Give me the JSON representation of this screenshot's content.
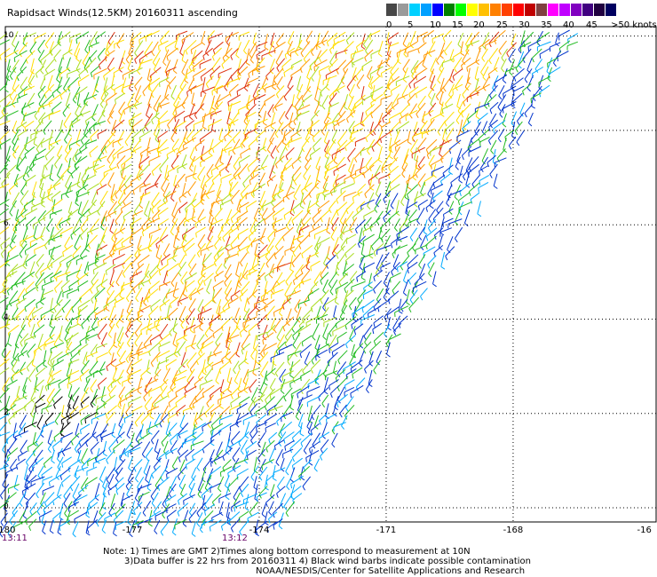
{
  "title": "Rapidsact Winds(12.5KM) 20160311 ascending",
  "legend": {
    "swatches": [
      {
        "color": "#474747"
      },
      {
        "color": "#9a9a9a"
      },
      {
        "color": "#00d0ff"
      },
      {
        "color": "#00a0ff"
      },
      {
        "color": "#0000ff"
      },
      {
        "color": "#008000"
      },
      {
        "color": "#00ff00"
      },
      {
        "color": "#ffff00"
      },
      {
        "color": "#ffc000"
      },
      {
        "color": "#ff8000"
      },
      {
        "color": "#ff4000"
      },
      {
        "color": "#ff0000"
      },
      {
        "color": "#c00000"
      },
      {
        "color": "#804040"
      },
      {
        "color": "#ff00ff"
      },
      {
        "color": "#c000ff"
      },
      {
        "color": "#8000c0"
      },
      {
        "color": "#400080"
      },
      {
        "color": "#200040"
      },
      {
        "color": "#000060"
      }
    ],
    "labels": [
      "0",
      "5",
      "10",
      "15",
      "20",
      "25",
      "30",
      "35",
      "40",
      "45",
      ">50 knots"
    ]
  },
  "axes": {
    "lon_ticks": [
      "-180",
      "-177",
      "-174",
      "-171",
      "-168",
      "-16"
    ],
    "lat_ticks": [
      "10",
      "8",
      "6",
      "4",
      "2",
      "0"
    ]
  },
  "times": {
    "left": "13:11",
    "middle": "13:12"
  },
  "notes": {
    "line1": "Note: 1) Times are GMT 2)Times along bottom correspond to measurement at 10N",
    "line2": "3)Data buffer is 22 hrs from 20160311 4) Black wind barbs indicate possible contamination",
    "line3": "NOAA/NESDIS/Center for Satellite Applications and Research"
  },
  "map": {
    "lon_range": [
      -180,
      -164.6
    ],
    "lat_range": [
      -0.3,
      10.2
    ],
    "swath_boundary": [
      [
        -173.3,
        -0.3
      ],
      [
        -166.2,
        10.2
      ]
    ],
    "wind_colors": {
      "blue": "#0033cc",
      "lightblue": "#00aaff",
      "green": "#22bb22",
      "yellowgreen": "#aadd22",
      "yellow": "#ffdd00",
      "orange": "#ff9900",
      "red": "#dd3311",
      "black": "#000000"
    }
  }
}
